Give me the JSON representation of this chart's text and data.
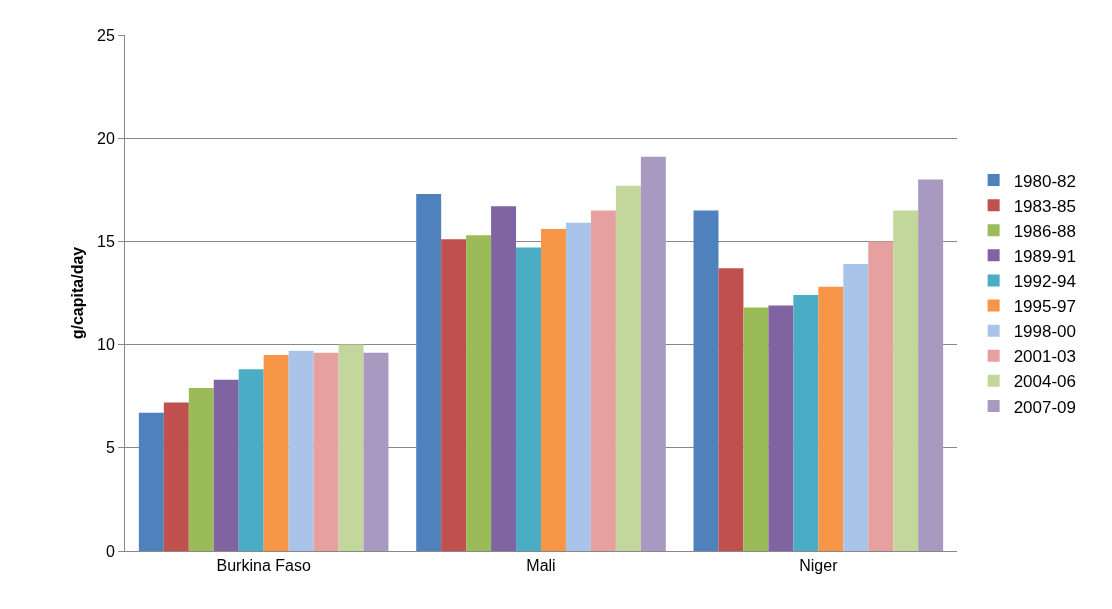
{
  "chart_data": {
    "type": "bar",
    "ylabel": "g/capita/day",
    "categories": [
      "Burkina Faso",
      "Mali",
      "Niger"
    ],
    "series": [
      {
        "name": "1980-82",
        "color": "#4f81bd",
        "values": [
          6.7,
          17.3,
          16.5
        ]
      },
      {
        "name": "1983-85",
        "color": "#c0504d",
        "values": [
          7.2,
          15.1,
          13.7
        ]
      },
      {
        "name": "1986-88",
        "color": "#9bbb59",
        "values": [
          7.9,
          15.3,
          11.8
        ]
      },
      {
        "name": "1989-91",
        "color": "#8064a2",
        "values": [
          8.3,
          16.7,
          11.9
        ]
      },
      {
        "name": "1992-94",
        "color": "#4bacc6",
        "values": [
          8.8,
          14.7,
          12.4
        ]
      },
      {
        "name": "1995-97",
        "color": "#f79646",
        "values": [
          9.5,
          15.6,
          12.8
        ]
      },
      {
        "name": "1998-00",
        "color": "#a9c4e8",
        "values": [
          9.7,
          15.9,
          13.9
        ]
      },
      {
        "name": "2001-03",
        "color": "#e6a0a0",
        "values": [
          9.6,
          16.5,
          15.0
        ]
      },
      {
        "name": "2004-06",
        "color": "#c3d69b",
        "values": [
          10.0,
          17.7,
          16.5
        ]
      },
      {
        "name": "2007-09",
        "color": "#a899c0",
        "values": [
          9.6,
          19.1,
          18.0
        ]
      }
    ],
    "ylim": [
      0,
      25
    ],
    "yticks": [
      0,
      5,
      10,
      15,
      20,
      25
    ],
    "grid": "y",
    "legend": "right"
  }
}
